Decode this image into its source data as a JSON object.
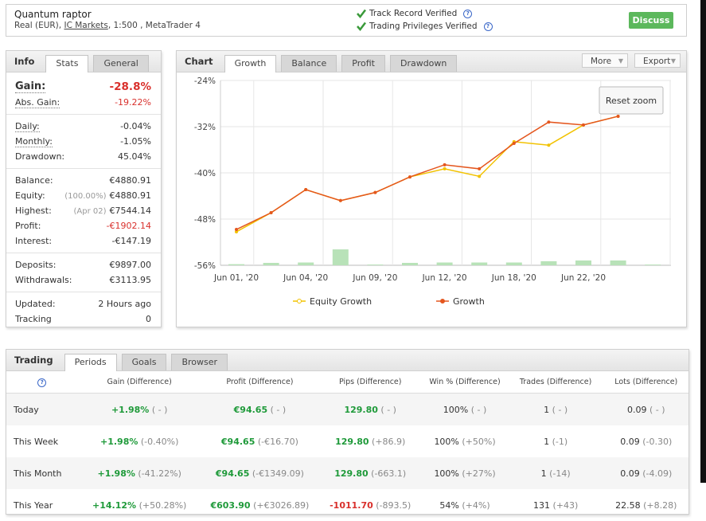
{
  "header": {
    "title": "Quantum raptor",
    "subtitle": [
      "Real (EUR), ",
      "IC Markets",
      ", 1:500 , MetaTrader 4"
    ],
    "verifications": [
      "Track Record Verified",
      "Trading Privileges Verified"
    ],
    "help": "?",
    "button": "Discuss"
  },
  "info": {
    "tabs": [
      "Info",
      "Stats",
      "General"
    ],
    "sections": [
      [
        {
          "label": "Gain:",
          "value": "-28.8%",
          "color": "#d9302c",
          "dotted": true,
          "big": true
        },
        {
          "label": "Abs. Gain:",
          "value": "-19.22%",
          "color": "#d9302c",
          "dotted": true
        }
      ],
      [
        {
          "label": "Daily:",
          "value": "-0.04%",
          "dotted": true
        },
        {
          "label": "Monthly:",
          "value": "-1.05%",
          "dotted": true
        },
        {
          "label": "Drawdown:",
          "value": "45.04%"
        }
      ],
      [
        {
          "label": "Balance:",
          "value": "€4880.91"
        },
        {
          "label": "Equity:",
          "note": "(100.00%)",
          "value": "€4880.91"
        },
        {
          "label": "Highest:",
          "note": "(Apr 02)",
          "value": "€7544.14"
        },
        {
          "label": "Profit:",
          "value": "-€1902.14",
          "color": "#d9302c"
        },
        {
          "label": "Interest:",
          "value": "-€147.19"
        }
      ],
      [
        {
          "label": "Deposits:",
          "value": "€9897.00"
        },
        {
          "label": "Withdrawals:",
          "value": "€3113.95"
        }
      ],
      [
        {
          "label": "Updated:",
          "value": "2 Hours ago"
        },
        {
          "label": "Tracking",
          "value": "0"
        }
      ]
    ]
  },
  "chart_panel": {
    "title": "Chart",
    "tabs": [
      "Growth",
      "Balance",
      "Profit",
      "Drawdown"
    ],
    "buttons": [
      "More",
      "Export"
    ],
    "reset": "Reset zoom"
  },
  "chart_data": {
    "type": "line",
    "categories": [
      "Jun 01, '20",
      null,
      "Jun 04, '20",
      null,
      "Jun 09, '20",
      null,
      "Jun 12, '20",
      null,
      "Jun 18, '20",
      null,
      "Jun 22, '20",
      null,
      null
    ],
    "series": [
      {
        "name": "Equity Growth",
        "color": "#f2c200",
        "values": [
          -50.2,
          -46.9,
          -42.9,
          -44.8,
          -43.4,
          -40.7,
          -39.3,
          -40.6,
          -34.6,
          -35.2,
          -31.7,
          -30.2,
          null
        ]
      },
      {
        "name": "Growth",
        "color": "#e4561e",
        "values": [
          -49.8,
          -46.9,
          -42.9,
          -44.8,
          -43.4,
          -40.7,
          -38.6,
          -39.3,
          -34.9,
          -31.2,
          -31.7,
          -30.2,
          null
        ]
      },
      {
        "type": "bar",
        "color": "#b8e2b8",
        "axis": "y2",
        "values": [
          0.6,
          1.3,
          1.5,
          8.6,
          0.4,
          1.3,
          1.5,
          1.5,
          1.5,
          2.2,
          2.6,
          2.6,
          0.4
        ]
      }
    ],
    "ylim": [
      -56,
      -24
    ],
    "yticks": [
      {
        "value": -24,
        "label": "-24%"
      },
      {
        "value": -32,
        "label": "-32%"
      },
      {
        "value": -40,
        "label": "-40%"
      },
      {
        "value": -48,
        "label": "-48%"
      },
      {
        "value": -56,
        "label": "-56%"
      }
    ],
    "y2lim": [
      0,
      100
    ],
    "grid": true
  },
  "trading": {
    "tabs": [
      "Trading",
      "Periods",
      "Goals",
      "Browser"
    ],
    "help": "?",
    "columns": [
      "Gain (Difference)",
      "Profit (Difference)",
      "Pips (Difference)",
      "Win % (Difference)",
      "Trades (Difference)",
      "Lots (Difference)"
    ],
    "rows": [
      {
        "period": "Today",
        "cells": [
          {
            "value": "+1.98%",
            "diff": "( - )",
            "color": "#1f9a3a"
          },
          {
            "value": "€94.65",
            "diff": "( - )",
            "color": "#1f9a3a"
          },
          {
            "value": "129.80",
            "diff": "( - )",
            "color": "#1f9a3a"
          },
          {
            "value": "100%",
            "diff": "( - )"
          },
          {
            "value": "1",
            "diff": "( - )"
          },
          {
            "value": "0.09",
            "diff": "( - )"
          }
        ]
      },
      {
        "period": "This Week",
        "cells": [
          {
            "value": "+1.98%",
            "diff": "(-0.40%)",
            "color": "#1f9a3a"
          },
          {
            "value": "€94.65",
            "diff": "(-€16.70)",
            "color": "#1f9a3a"
          },
          {
            "value": "129.80",
            "diff": "(+86.9)",
            "color": "#1f9a3a"
          },
          {
            "value": "100%",
            "diff": "(+50%)"
          },
          {
            "value": "1",
            "diff": "(-1)"
          },
          {
            "value": "0.09",
            "diff": "(-0.30)"
          }
        ]
      },
      {
        "period": "This Month",
        "cells": [
          {
            "value": "+1.98%",
            "diff": "(-41.22%)",
            "color": "#1f9a3a"
          },
          {
            "value": "€94.65",
            "diff": "(-€1349.09)",
            "color": "#1f9a3a"
          },
          {
            "value": "129.80",
            "diff": "(-663.1)",
            "color": "#1f9a3a"
          },
          {
            "value": "100%",
            "diff": "(+27%)"
          },
          {
            "value": "1",
            "diff": "(-14)"
          },
          {
            "value": "0.09",
            "diff": "(-4.09)"
          }
        ]
      },
      {
        "period": "This Year",
        "cells": [
          {
            "value": "+14.12%",
            "diff": "(+50.28%)",
            "color": "#1f9a3a"
          },
          {
            "value": "€603.90",
            "diff": "(+€3026.89)",
            "color": "#1f9a3a"
          },
          {
            "value": "-1011.70",
            "diff": "(-893.5)",
            "color": "#d9302c"
          },
          {
            "value": "54%",
            "diff": "(+4%)"
          },
          {
            "value": "131",
            "diff": "(+43)"
          },
          {
            "value": "22.58",
            "diff": "(+8.28)"
          }
        ]
      }
    ]
  }
}
